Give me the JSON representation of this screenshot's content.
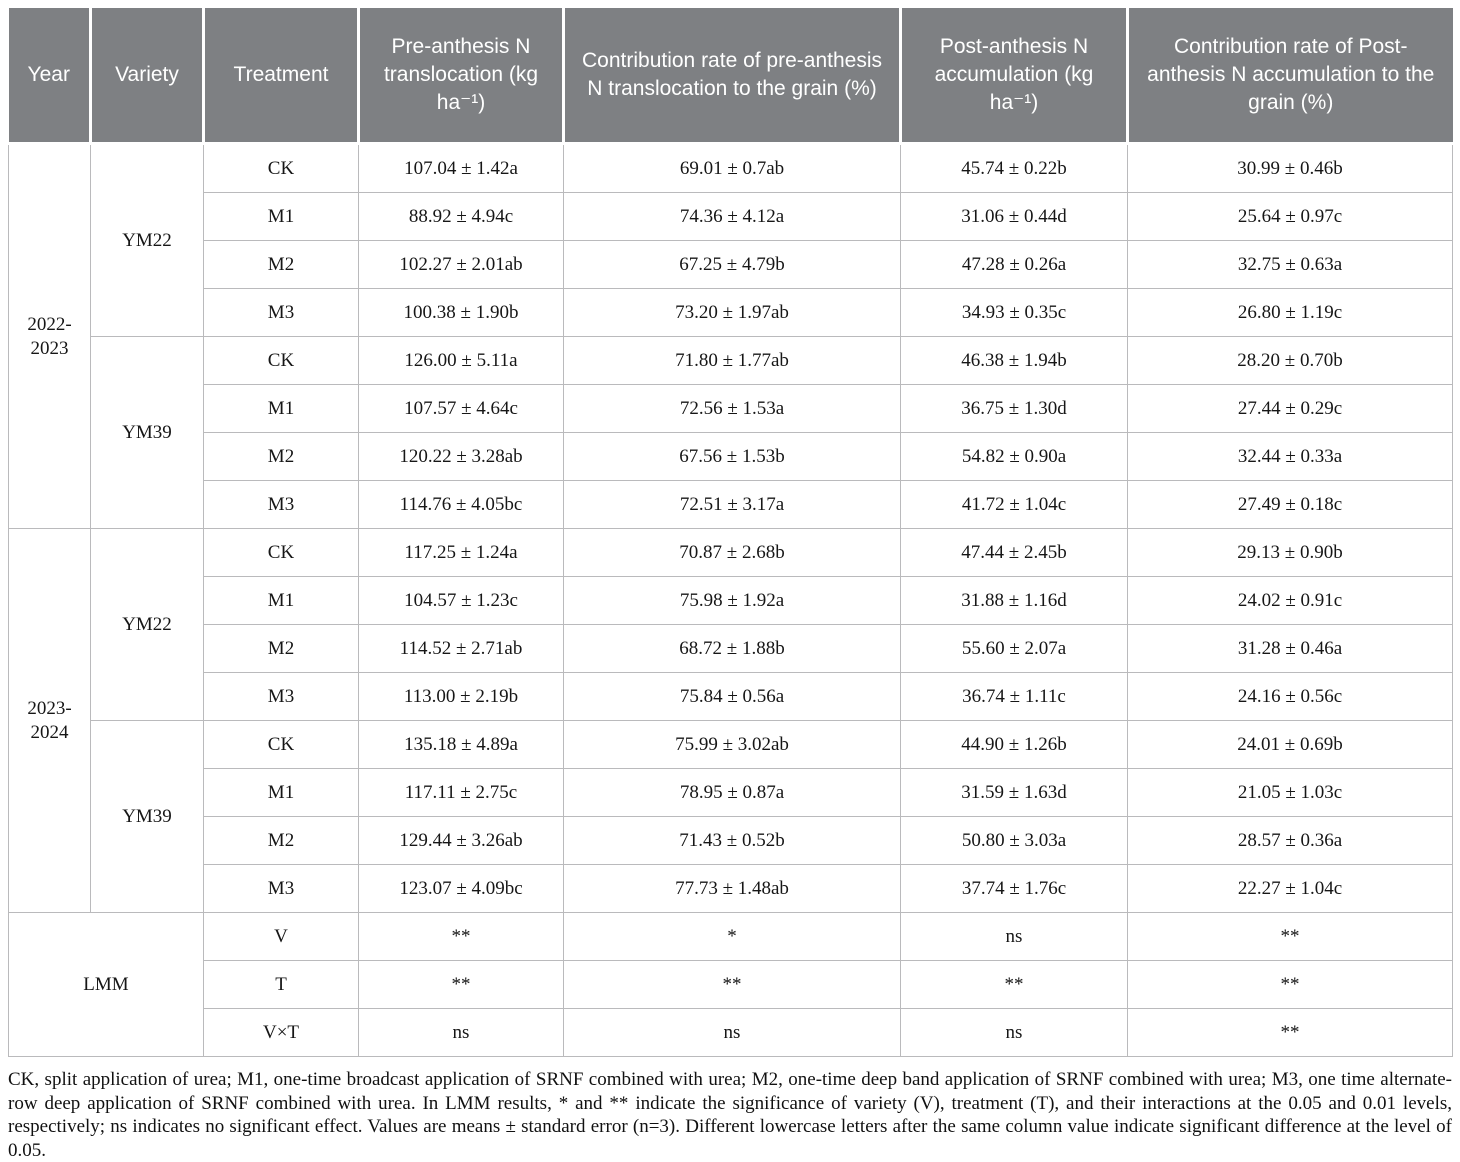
{
  "table": {
    "headers": [
      "Year",
      "Variety",
      "Treatment",
      "Pre-anthesis N translocation (kg ha⁻¹)",
      "Contribution rate of pre-anthesis N translocation to the grain (%)",
      "Post-anthesis N accumulation (kg ha⁻¹)",
      "Contribution rate of Post-anthesis N accumulation to the grain (%)"
    ],
    "body_groups": [
      {
        "year": "2022-2023",
        "varieties": [
          {
            "name": "YM22",
            "rows": [
              {
                "treatment": "CK",
                "values": [
                  "107.04 ± 1.42a",
                  "69.01 ± 0.7ab",
                  "45.74 ± 0.22b",
                  "30.99 ± 0.46b"
                ]
              },
              {
                "treatment": "M1",
                "values": [
                  "88.92 ± 4.94c",
                  "74.36 ± 4.12a",
                  "31.06 ± 0.44d",
                  "25.64 ± 0.97c"
                ]
              },
              {
                "treatment": "M2",
                "values": [
                  "102.27 ± 2.01ab",
                  "67.25 ± 4.79b",
                  "47.28 ± 0.26a",
                  "32.75 ± 0.63a"
                ]
              },
              {
                "treatment": "M3",
                "values": [
                  "100.38 ± 1.90b",
                  "73.20 ± 1.97ab",
                  "34.93 ± 0.35c",
                  "26.80 ± 1.19c"
                ]
              }
            ]
          },
          {
            "name": "YM39",
            "rows": [
              {
                "treatment": "CK",
                "values": [
                  "126.00 ± 5.11a",
                  "71.80 ± 1.77ab",
                  "46.38 ± 1.94b",
                  "28.20 ± 0.70b"
                ]
              },
              {
                "treatment": "M1",
                "values": [
                  "107.57 ± 4.64c",
                  "72.56 ± 1.53a",
                  "36.75 ± 1.30d",
                  "27.44 ± 0.29c"
                ]
              },
              {
                "treatment": "M2",
                "values": [
                  "120.22 ± 3.28ab",
                  "67.56 ± 1.53b",
                  "54.82 ± 0.90a",
                  "32.44 ± 0.33a"
                ]
              },
              {
                "treatment": "M3",
                "values": [
                  "114.76 ± 4.05bc",
                  "72.51 ± 3.17a",
                  "41.72 ± 1.04c",
                  "27.49 ± 0.18c"
                ]
              }
            ]
          }
        ]
      },
      {
        "year": "2023-2024",
        "varieties": [
          {
            "name": "YM22",
            "rows": [
              {
                "treatment": "CK",
                "values": [
                  "117.25 ± 1.24a",
                  "70.87 ± 2.68b",
                  "47.44 ± 2.45b",
                  "29.13 ± 0.90b"
                ]
              },
              {
                "treatment": "M1",
                "values": [
                  "104.57 ± 1.23c",
                  "75.98 ± 1.92a",
                  "31.88 ± 1.16d",
                  "24.02 ± 0.91c"
                ]
              },
              {
                "treatment": "M2",
                "values": [
                  "114.52 ± 2.71ab",
                  "68.72 ± 1.88b",
                  "55.60 ± 2.07a",
                  "31.28 ± 0.46a"
                ]
              },
              {
                "treatment": "M3",
                "values": [
                  "113.00 ± 2.19b",
                  "75.84 ± 0.56a",
                  "36.74 ± 1.11c",
                  "24.16 ± 0.56c"
                ]
              }
            ]
          },
          {
            "name": "YM39",
            "rows": [
              {
                "treatment": "CK",
                "values": [
                  "135.18 ± 4.89a",
                  "75.99 ± 3.02ab",
                  "44.90 ± 1.26b",
                  "24.01 ± 0.69b"
                ]
              },
              {
                "treatment": "M1",
                "values": [
                  "117.11 ± 2.75c",
                  "78.95 ± 0.87a",
                  "31.59 ± 1.63d",
                  "21.05 ± 1.03c"
                ]
              },
              {
                "treatment": "M2",
                "values": [
                  "129.44 ± 3.26ab",
                  "71.43 ± 0.52b",
                  "50.80 ± 3.03a",
                  "28.57 ± 0.36a"
                ]
              },
              {
                "treatment": "M3",
                "values": [
                  "123.07 ± 4.09bc",
                  "77.73 ± 1.48ab",
                  "37.74 ± 1.76c",
                  "22.27 ± 1.04c"
                ]
              }
            ]
          }
        ]
      }
    ],
    "lmm": {
      "label": "LMM",
      "rows": [
        {
          "factor": "V",
          "values": [
            "**",
            "*",
            "ns",
            "**"
          ]
        },
        {
          "factor": "T",
          "values": [
            "**",
            "**",
            "**",
            "**"
          ]
        },
        {
          "factor": "V×T",
          "values": [
            "ns",
            "ns",
            "ns",
            "**"
          ]
        }
      ]
    }
  },
  "footnote": "CK, split application of urea; M1, one-time broadcast application of SRNF combined with urea; M2, one-time deep band application of SRNF combined with urea; M3, one time alternate-row deep application of SRNF combined with urea. In LMM results, * and ** indicate the significance of variety (V), treatment (T), and their interactions at the 0.05 and 0.01 levels, respectively; ns indicates no significant effect. Values are means ± standard error (n=3). Different lowercase letters after the same column value indicate significant difference at the level of 0.05."
}
